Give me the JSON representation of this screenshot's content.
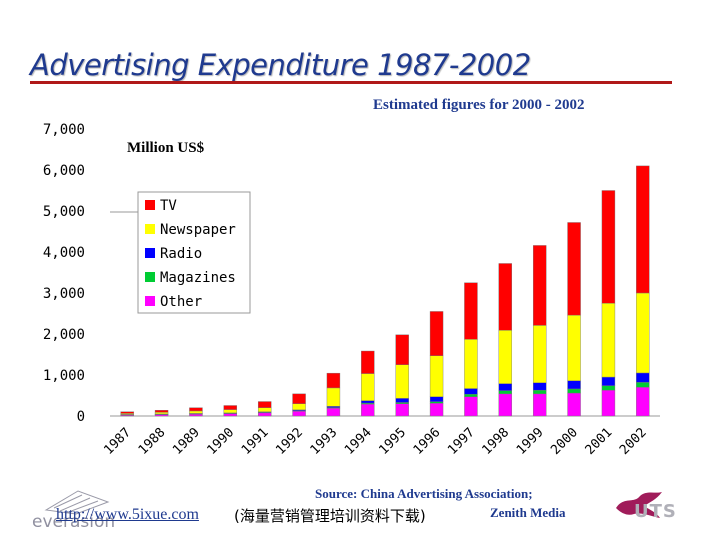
{
  "header": {
    "title": "Advertising Expenditure 1987-2002",
    "estimate_note": "Estimated figures for 2000 - 2002"
  },
  "chart_data": {
    "type": "bar",
    "stacked": true,
    "unit_label": "Million US$",
    "ylim": [
      0,
      7000
    ],
    "y_ticks": [
      0,
      1000,
      2000,
      3000,
      4000,
      5000,
      6000,
      7000
    ],
    "y_tick_labels": [
      "0",
      "1,000",
      "2,000",
      "3,000",
      "4,000",
      "5,000",
      "6,000",
      "7,000"
    ],
    "categories": [
      "1987",
      "1988",
      "1989",
      "1990",
      "1991",
      "1992",
      "1993",
      "1994",
      "1995",
      "1996",
      "1997",
      "1998",
      "1999",
      "2000",
      "2001",
      "2002"
    ],
    "legend_position": "upper-left",
    "series": [
      {
        "name": "Other",
        "color": "#ff00ff",
        "values": [
          30,
          40,
          50,
          60,
          80,
          120,
          190,
          290,
          300,
          310,
          470,
          540,
          540,
          560,
          630,
          700
        ]
      },
      {
        "name": "Magazines",
        "color": "#00cc33",
        "values": [
          3,
          4,
          5,
          6,
          8,
          10,
          15,
          25,
          30,
          40,
          60,
          80,
          90,
          100,
          110,
          120
        ]
      },
      {
        "name": "Radio",
        "color": "#0000ff",
        "values": [
          5,
          6,
          8,
          10,
          15,
          20,
          30,
          60,
          100,
          120,
          140,
          170,
          180,
          200,
          210,
          230
        ]
      },
      {
        "name": "Newspaper",
        "color": "#ffff00",
        "values": [
          25,
          40,
          60,
          80,
          100,
          150,
          450,
          660,
          820,
          1000,
          1200,
          1300,
          1400,
          1600,
          1800,
          1950
        ]
      },
      {
        "name": "TV",
        "color": "#ff0000",
        "values": [
          40,
          50,
          80,
          100,
          150,
          240,
          360,
          550,
          730,
          1080,
          1380,
          1630,
          1950,
          2260,
          2750,
          3100
        ]
      }
    ],
    "legend_order": [
      "TV",
      "Newspaper",
      "Radio",
      "Magazines",
      "Other"
    ]
  },
  "footer": {
    "source_line1": "Source: China Advertising Association;",
    "source_link": "http://www.5ixue.com",
    "source_cn": "(海量营销管理培训资料下载)",
    "source_line2": "Zenith Media",
    "left_logo_text": "everasion",
    "right_logo_text": "UTS"
  }
}
